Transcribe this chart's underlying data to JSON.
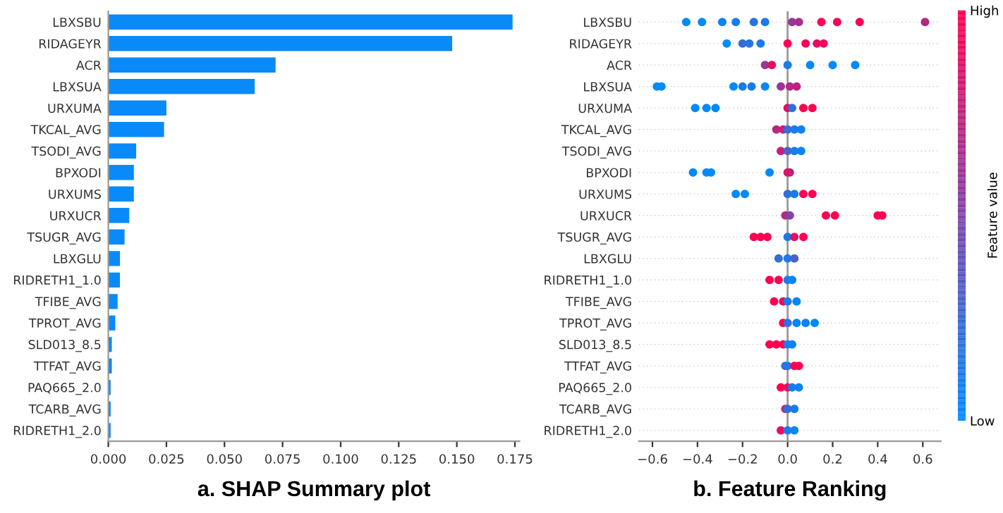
{
  "chart_data": [
    {
      "type": "bar",
      "orientation": "horizontal",
      "title": "a. SHAP Summary plot",
      "categories": [
        "LBXSBU",
        "RIDAGEYR",
        "ACR",
        "LBXSUA",
        "URXUMA",
        "TKCAL_AVG",
        "TSODI_AVG",
        "BPXODI",
        "URXUMS",
        "URXUCR",
        "TSUGR_AVG",
        "LBXGLU",
        "RIDRETH1_1.0",
        "TFIBE_AVG",
        "TPROT_AVG",
        "SLD013_8.5",
        "TTFAT_AVG",
        "PAQ665_2.0",
        "TCARB_AVG",
        "RIDRETH1_2.0"
      ],
      "values": [
        0.174,
        0.148,
        0.072,
        0.063,
        0.025,
        0.024,
        0.012,
        0.011,
        0.011,
        0.009,
        0.007,
        0.005,
        0.005,
        0.004,
        0.003,
        0.0015,
        0.0015,
        0.001,
        0.001,
        0.001
      ],
      "color": "#0a8af8",
      "xlim": [
        0,
        0.177
      ],
      "xticks": [
        {
          "value": 0,
          "label": "0.000"
        },
        0.025,
        {
          "value": 0.05,
          "label": "0.050"
        },
        0.075,
        {
          "value": 0.1,
          "label": "0.100"
        },
        0.125,
        {
          "value": 0.15,
          "label": "0.150"
        },
        0.175
      ],
      "grid": false,
      "legend": false
    },
    {
      "type": "scatter",
      "orientation": "horizontal",
      "title": "b. Feature Ranking",
      "clabel": "Feature value",
      "categories": [
        "LBXSBU",
        "RIDAGEYR",
        "ACR",
        "LBXSUA",
        "URXUMA",
        "TKCAL_AVG",
        "TSODI_AVG",
        "BPXODI",
        "URXUMS",
        "URXUCR",
        "TSUGR_AVG",
        "LBXGLU",
        "RIDRETH1_1.0",
        "TFIBE_AVG",
        "TPROT_AVG",
        "SLD013_8.5",
        "TTFAT_AVG",
        "PAQ665_2.0",
        "TCARB_AVG",
        "RIDRETH1_2.0"
      ],
      "series": [
        {
          "values": [
            -0.45,
            -0.27,
            -0.1,
            -0.58,
            -0.41,
            -0.05,
            -0.03,
            -0.42,
            -0.23,
            -0.01,
            -0.15,
            -0.04,
            -0.08,
            -0.06,
            -0.02,
            -0.08,
            -0.01,
            -0.03,
            -0.01,
            -0.03
          ],
          "cvalues": [
            0,
            0,
            0.6,
            0,
            0,
            0.7,
            0.75,
            0,
            0,
            0.7,
            1,
            0.2,
            1,
            1,
            1,
            1,
            0.2,
            1,
            0.7,
            0.9
          ],
          "colors": [
            "#008afb",
            "#008afb",
            "#993796",
            "#008afb",
            "#008afb",
            "#b32985",
            "#bf237c",
            "#008afb",
            "#008afb",
            "#b32985",
            "#ff0052",
            "#336ed9",
            "#ff0052",
            "#ff0052",
            "#ff0052",
            "#ff0052",
            "#336ed9",
            "#ff0052",
            "#b32985",
            "#e60e63"
          ]
        },
        {
          "values": [
            -0.38,
            -0.2,
            -0.07,
            -0.56,
            -0.36,
            -0.02,
            0.0,
            -0.36,
            -0.19,
            0.01,
            -0.12,
            0.0,
            -0.04,
            -0.02,
            0.0,
            -0.05,
            0.0,
            0.0,
            0.0,
            0.0
          ],
          "cvalues": [
            0,
            0.2,
            0.9,
            0,
            0,
            0.8,
            0.3,
            0,
            0,
            0.5,
            1,
            0.1,
            1,
            0.9,
            0.2,
            1,
            0.1,
            0.9,
            0.2,
            0.1
          ],
          "colors": [
            "#008afb",
            "#336ed9",
            "#e60e63",
            "#008afb",
            "#008afb",
            "#cc1c74",
            "#4d61c8",
            "#008afb",
            "#008afb",
            "#8045a7",
            "#ff0052",
            "#1a7cea",
            "#ff0052",
            "#e60e63",
            "#336ed9",
            "#ff0052",
            "#1a7cea",
            "#e60e63",
            "#336ed9",
            "#1a7cea"
          ]
        },
        {
          "values": [
            -0.29,
            -0.17,
            0.0,
            -0.24,
            -0.32,
            0.0,
            0.03,
            -0.34,
            0.0,
            0.17,
            -0.09,
            0.03,
            0.0,
            0.0,
            0.04,
            -0.02,
            0.03,
            0.02,
            0.03,
            0.03
          ],
          "cvalues": [
            0.05,
            0.15,
            0.1,
            0,
            0,
            0.2,
            0.1,
            0,
            0.2,
            1,
            1,
            0.3,
            0.1,
            0.1,
            0.05,
            1,
            1,
            0.1,
            0.1,
            0.05
          ],
          "colors": [
            "#0d83f3",
            "#2675e2",
            "#1a7cea",
            "#008afb",
            "#008afb",
            "#336ed9",
            "#1a7cea",
            "#008afb",
            "#336ed9",
            "#ff0052",
            "#ff0052",
            "#4d61c8",
            "#1a7cea",
            "#1a7cea",
            "#0d83f3",
            "#ff0052",
            "#ff0052",
            "#1a7cea",
            "#1a7cea",
            "#0d83f3"
          ]
        },
        {
          "values": [
            -0.23,
            -0.12,
            0.1,
            -0.2,
            0.0,
            0.03,
            0.06,
            -0.08,
            0.03,
            0.21,
            0.0,
            null,
            0.02,
            0.04,
            0.08,
            0.0,
            0.05,
            0.05,
            null,
            null
          ],
          "cvalues": [
            0.1,
            0.1,
            0,
            0.1,
            0.9,
            0.1,
            0.05,
            0,
            0.1,
            1,
            0.1,
            null,
            0.05,
            0.05,
            0.05,
            0.1,
            1,
            0.05,
            null,
            null
          ],
          "colors": [
            "#1a7cea",
            "#1a7cea",
            "#008afb",
            "#1a7cea",
            "#e60e63",
            "#1a7cea",
            "#0d83f3",
            "#008afb",
            "#1a7cea",
            "#ff0052",
            "#1a7cea",
            null,
            "#0d83f3",
            "#0d83f3",
            "#0d83f3",
            "#1a7cea",
            "#ff0052",
            "#0d83f3",
            null,
            null
          ]
        },
        {
          "values": [
            -0.15,
            0.0,
            0.2,
            -0.16,
            0.02,
            0.06,
            null,
            0.0,
            0.07,
            0.4,
            0.03,
            null,
            null,
            null,
            0.12,
            0.02,
            null,
            null,
            null,
            null
          ],
          "cvalues": [
            0.15,
            1,
            0,
            0.1,
            0.2,
            0.05,
            null,
            0.9,
            1,
            1,
            0.9,
            null,
            null,
            null,
            0,
            0.05,
            null,
            null,
            null,
            null
          ],
          "colors": [
            "#2675e2",
            "#ff0052",
            "#008afb",
            "#1a7cea",
            "#336ed9",
            "#0d83f3",
            null,
            "#e60e63",
            "#ff0052",
            "#ff0052",
            "#e60e63",
            null,
            null,
            null,
            "#008afb",
            "#0d83f3",
            null,
            null,
            null,
            null
          ]
        },
        {
          "values": [
            -0.1,
            0.08,
            0.3,
            -0.1,
            0.07,
            null,
            null,
            0.01,
            0.11,
            0.42,
            0.07,
            null,
            null,
            null,
            null,
            null,
            null,
            null,
            null,
            null
          ],
          "cvalues": [
            0.1,
            0.95,
            0,
            0,
            1,
            null,
            null,
            0.8,
            1,
            1,
            1,
            null,
            null,
            null,
            null,
            null,
            null,
            null,
            null,
            null
          ],
          "colors": [
            "#1a7cea",
            "#f2075a",
            "#008afb",
            "#008afb",
            "#ff0052",
            null,
            null,
            "#cc1c74",
            "#ff0052",
            "#ff0052",
            "#ff0052",
            null,
            null,
            null,
            null,
            null,
            null,
            null,
            null,
            null
          ]
        },
        {
          "values": [
            0.02,
            0.13,
            null,
            -0.03,
            0.11,
            null,
            null,
            null,
            null,
            null,
            null,
            null,
            null,
            null,
            null,
            null,
            null,
            null,
            null,
            null
          ],
          "cvalues": [
            0.6,
            0.9,
            null,
            0.6,
            1,
            null,
            null,
            null,
            null,
            null,
            null,
            null,
            null,
            null,
            null,
            null,
            null,
            null,
            null,
            null
          ],
          "colors": [
            "#993796",
            "#e60e63",
            null,
            "#993796",
            "#ff0052",
            null,
            null,
            null,
            null,
            null,
            null,
            null,
            null,
            null,
            null,
            null,
            null,
            null,
            null,
            null
          ]
        },
        {
          "values": [
            0.05,
            0.16,
            null,
            0.01,
            null,
            null,
            null,
            null,
            null,
            null,
            null,
            null,
            null,
            null,
            null,
            null,
            null,
            null,
            null,
            null
          ],
          "cvalues": [
            0.65,
            0.95,
            null,
            0.7,
            null,
            null,
            null,
            null,
            null,
            null,
            null,
            null,
            null,
            null,
            null,
            null,
            null,
            null,
            null,
            null
          ],
          "colors": [
            "#a6308d",
            "#f2075a",
            null,
            "#b32985",
            null,
            null,
            null,
            null,
            null,
            null,
            null,
            null,
            null,
            null,
            null,
            null,
            null,
            null,
            null,
            null
          ]
        },
        {
          "values": [
            0.15,
            null,
            null,
            0.04,
            null,
            null,
            null,
            null,
            null,
            null,
            null,
            null,
            null,
            null,
            null,
            null,
            null,
            null,
            null,
            null
          ],
          "cvalues": [
            1,
            null,
            null,
            0.75,
            null,
            null,
            null,
            null,
            null,
            null,
            null,
            null,
            null,
            null,
            null,
            null,
            null,
            null,
            null,
            null
          ],
          "colors": [
            "#ff0052",
            null,
            null,
            "#bf237c",
            null,
            null,
            null,
            null,
            null,
            null,
            null,
            null,
            null,
            null,
            null,
            null,
            null,
            null,
            null,
            null
          ]
        },
        {
          "values": [
            0.22,
            null,
            null,
            null,
            null,
            null,
            null,
            null,
            null,
            null,
            null,
            null,
            null,
            null,
            null,
            null,
            null,
            null,
            null,
            null
          ],
          "cvalues": [
            0.95,
            null,
            null,
            null,
            null,
            null,
            null,
            null,
            null,
            null,
            null,
            null,
            null,
            null,
            null,
            null,
            null,
            null,
            null,
            null
          ],
          "colors": [
            "#f2075a",
            null,
            null,
            null,
            null,
            null,
            null,
            null,
            null,
            null,
            null,
            null,
            null,
            null,
            null,
            null,
            null,
            null,
            null,
            null
          ]
        },
        {
          "values": [
            0.32,
            null,
            null,
            null,
            null,
            null,
            null,
            null,
            null,
            null,
            null,
            null,
            null,
            null,
            null,
            null,
            null,
            null,
            null,
            null
          ],
          "cvalues": [
            1,
            null,
            null,
            null,
            null,
            null,
            null,
            null,
            null,
            null,
            null,
            null,
            null,
            null,
            null,
            null,
            null,
            null,
            null,
            null
          ],
          "colors": [
            "#ff0052",
            null,
            null,
            null,
            null,
            null,
            null,
            null,
            null,
            null,
            null,
            null,
            null,
            null,
            null,
            null,
            null,
            null,
            null,
            null
          ]
        },
        {
          "values": [
            0.61,
            null,
            null,
            null,
            null,
            null,
            null,
            null,
            null,
            null,
            null,
            null,
            null,
            null,
            null,
            null,
            null,
            null,
            null,
            null
          ],
          "cvalues": [
            0.7,
            null,
            null,
            null,
            null,
            null,
            null,
            null,
            null,
            null,
            null,
            null,
            null,
            null,
            null,
            null,
            null,
            null,
            null,
            null
          ],
          "colors": [
            "#b32985",
            null,
            null,
            null,
            null,
            null,
            null,
            null,
            null,
            null,
            null,
            null,
            null,
            null,
            null,
            null,
            null,
            null,
            null,
            null
          ]
        }
      ],
      "xlim": [
        -0.66,
        0.68
      ],
      "xticks": [
        {
          "value": -0.6,
          "label": "−0.6"
        },
        {
          "value": -0.4,
          "label": "−0.4"
        },
        {
          "value": -0.2,
          "label": "−0.2"
        },
        {
          "value": 0,
          "label": "0.0"
        },
        0.2,
        0.4,
        0.6
      ],
      "clim": [
        0,
        1
      ],
      "cticks": [
        {
          "value": 0,
          "label": "Low"
        },
        {
          "value": 1,
          "label": "High"
        }
      ],
      "ref_lines": [
        {
          "axis": "x",
          "value": 0,
          "color": "#999999"
        }
      ],
      "grid": "y",
      "marker": "circle",
      "legend": false
    }
  ]
}
